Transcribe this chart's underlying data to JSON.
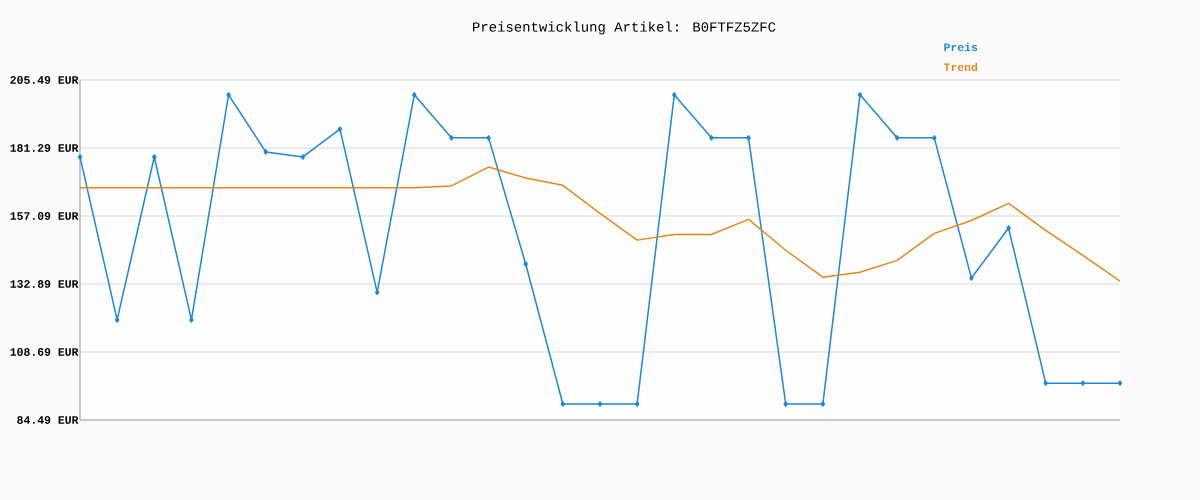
{
  "chart_data": {
    "type": "line",
    "title": "Preisentwicklung Artikel: B0FTFZ5ZFC",
    "categories": [
      null,
      null,
      null,
      null,
      null,
      null,
      null,
      null,
      null,
      null,
      null,
      null,
      null,
      null,
      null,
      null,
      null,
      null,
      null,
      null,
      null,
      null,
      null,
      null,
      null,
      null,
      null,
      null,
      null
    ],
    "series": [
      {
        "name": "Preis",
        "color": "#1f88d0",
        "marker": "diamond",
        "values": [
          178.1,
          120.1,
          178.1,
          120.1,
          200.2,
          179.9,
          178.1,
          188.0,
          129.9,
          200.2,
          184.9,
          184.9,
          140.0,
          90.2,
          90.2,
          90.2,
          200.2,
          184.9,
          184.9,
          90.2,
          90.2,
          200.2,
          184.9,
          184.9,
          135.0,
          152.8,
          97.6,
          97.6,
          97.6
        ]
      },
      {
        "name": "Trend",
        "color": "#e08a1e",
        "marker": "none",
        "values": [
          167.1,
          167.1,
          167.1,
          167.1,
          167.1,
          167.1,
          167.1,
          167.1,
          167.1,
          167.1,
          167.8,
          174.5,
          170.6,
          168.0,
          158.0,
          148.5,
          150.5,
          150.5,
          155.9,
          144.9,
          135.3,
          137.1,
          141.3,
          150.9,
          155.5,
          161.6,
          152.0,
          143.1,
          133.9
        ]
      }
    ],
    "ylim": [
      84.49,
      205.49
    ],
    "yticks": [
      {
        "value": 84.49,
        "label": "84.49 EUR"
      },
      {
        "value": 108.69,
        "label": "108.69 EUR"
      },
      {
        "value": 132.89,
        "label": "132.89 EUR"
      },
      {
        "value": 157.09,
        "label": "157.09 EUR"
      },
      {
        "value": 181.29,
        "label": "181.29 EUR"
      },
      {
        "value": 205.49,
        "label": "205.49 EUR"
      }
    ],
    "tick_labels": "y",
    "grid": "y",
    "legend": "top right",
    "line_style": "solid"
  }
}
